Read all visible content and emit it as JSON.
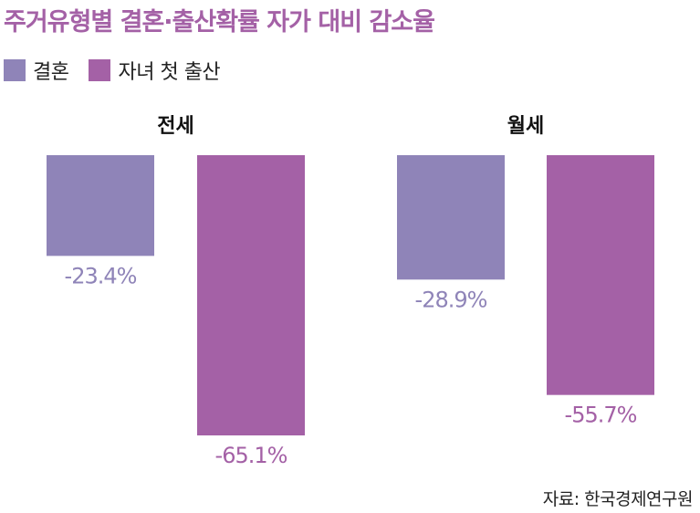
{
  "title": "주거유형별 결혼·출산확률 자가 대비 감소율",
  "source": "자료: 한국경제연구원",
  "colors": {
    "title": "#a461a6",
    "marriage": "#8f84b8",
    "birth": "#a461a6"
  },
  "chart_data": {
    "type": "bar",
    "categories": [
      "전세",
      "월세"
    ],
    "series": [
      {
        "name": "결혼",
        "values": [
          -23.4,
          -28.9
        ],
        "labels": [
          "-23.4%",
          "-28.9%"
        ],
        "color": "#8f84b8"
      },
      {
        "name": "자녀 첫 출산",
        "values": [
          -65.1,
          -55.7
        ],
        "labels": [
          "-65.1%",
          "-55.7%"
        ],
        "color": "#a461a6"
      }
    ],
    "ylim": [
      -65.1,
      0
    ],
    "legend": "top-left",
    "grid": false
  }
}
